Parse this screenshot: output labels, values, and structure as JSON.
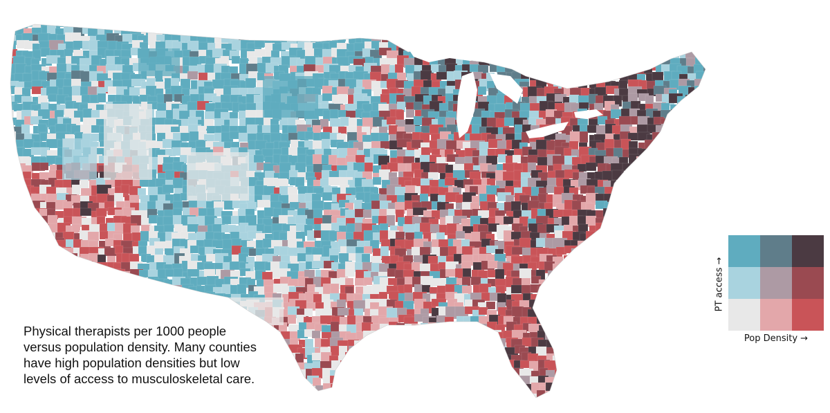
{
  "caption": {
    "lines": [
      "Physical therapists per 1000 people",
      "versus population density.  Many counties",
      "have high population densities but low",
      "levels of access to musculoskeletal care."
    ]
  },
  "legend": {
    "y_label": "PT access →",
    "x_label": "Pop Density →",
    "grid": [
      [
        "#5facbf",
        "#5f7d8a",
        "#4b3a42"
      ],
      [
        "#a9d3df",
        "#ad9aa4",
        "#9a4a51"
      ],
      [
        "#e8e8e8",
        "#e3a7aa",
        "#c95458"
      ]
    ]
  },
  "map": {
    "colors": {
      "low_low": "#e8e8e8",
      "mid_low": "#e3a7aa",
      "high_low": "#c95458",
      "low_mid": "#a9d3df",
      "mid_mid": "#ad9aa4",
      "high_mid": "#9a4a51",
      "low_high": "#5facbf",
      "mid_high": "#5f7d8a",
      "high_high": "#4b3a42"
    }
  }
}
